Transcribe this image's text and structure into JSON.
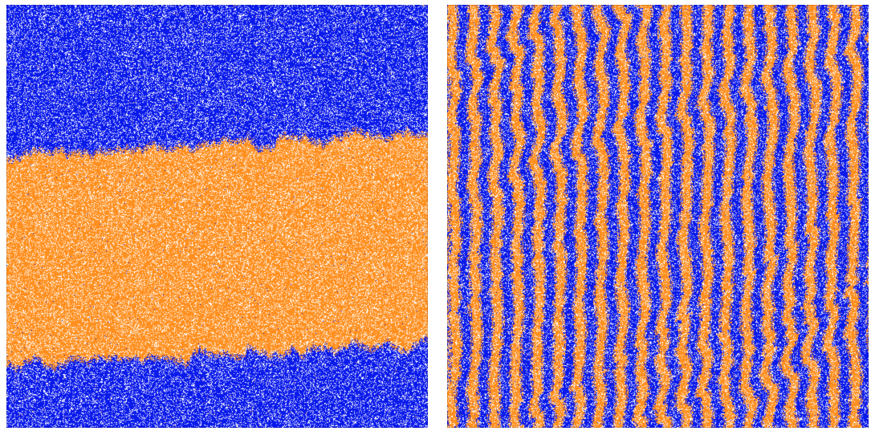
{
  "figure": {
    "colors": {
      "phase_a": "#0a1aeb",
      "phase_b": "#ff8f1f",
      "background": "#ffffff"
    },
    "panels": [
      {
        "id": "left",
        "pattern": "horizontal-band",
        "phases_top_to_bottom": [
          "phase_a",
          "phase_b",
          "phase_a"
        ]
      },
      {
        "id": "right",
        "pattern": "vertical-stripes",
        "stripe_pairs": 20
      }
    ]
  }
}
